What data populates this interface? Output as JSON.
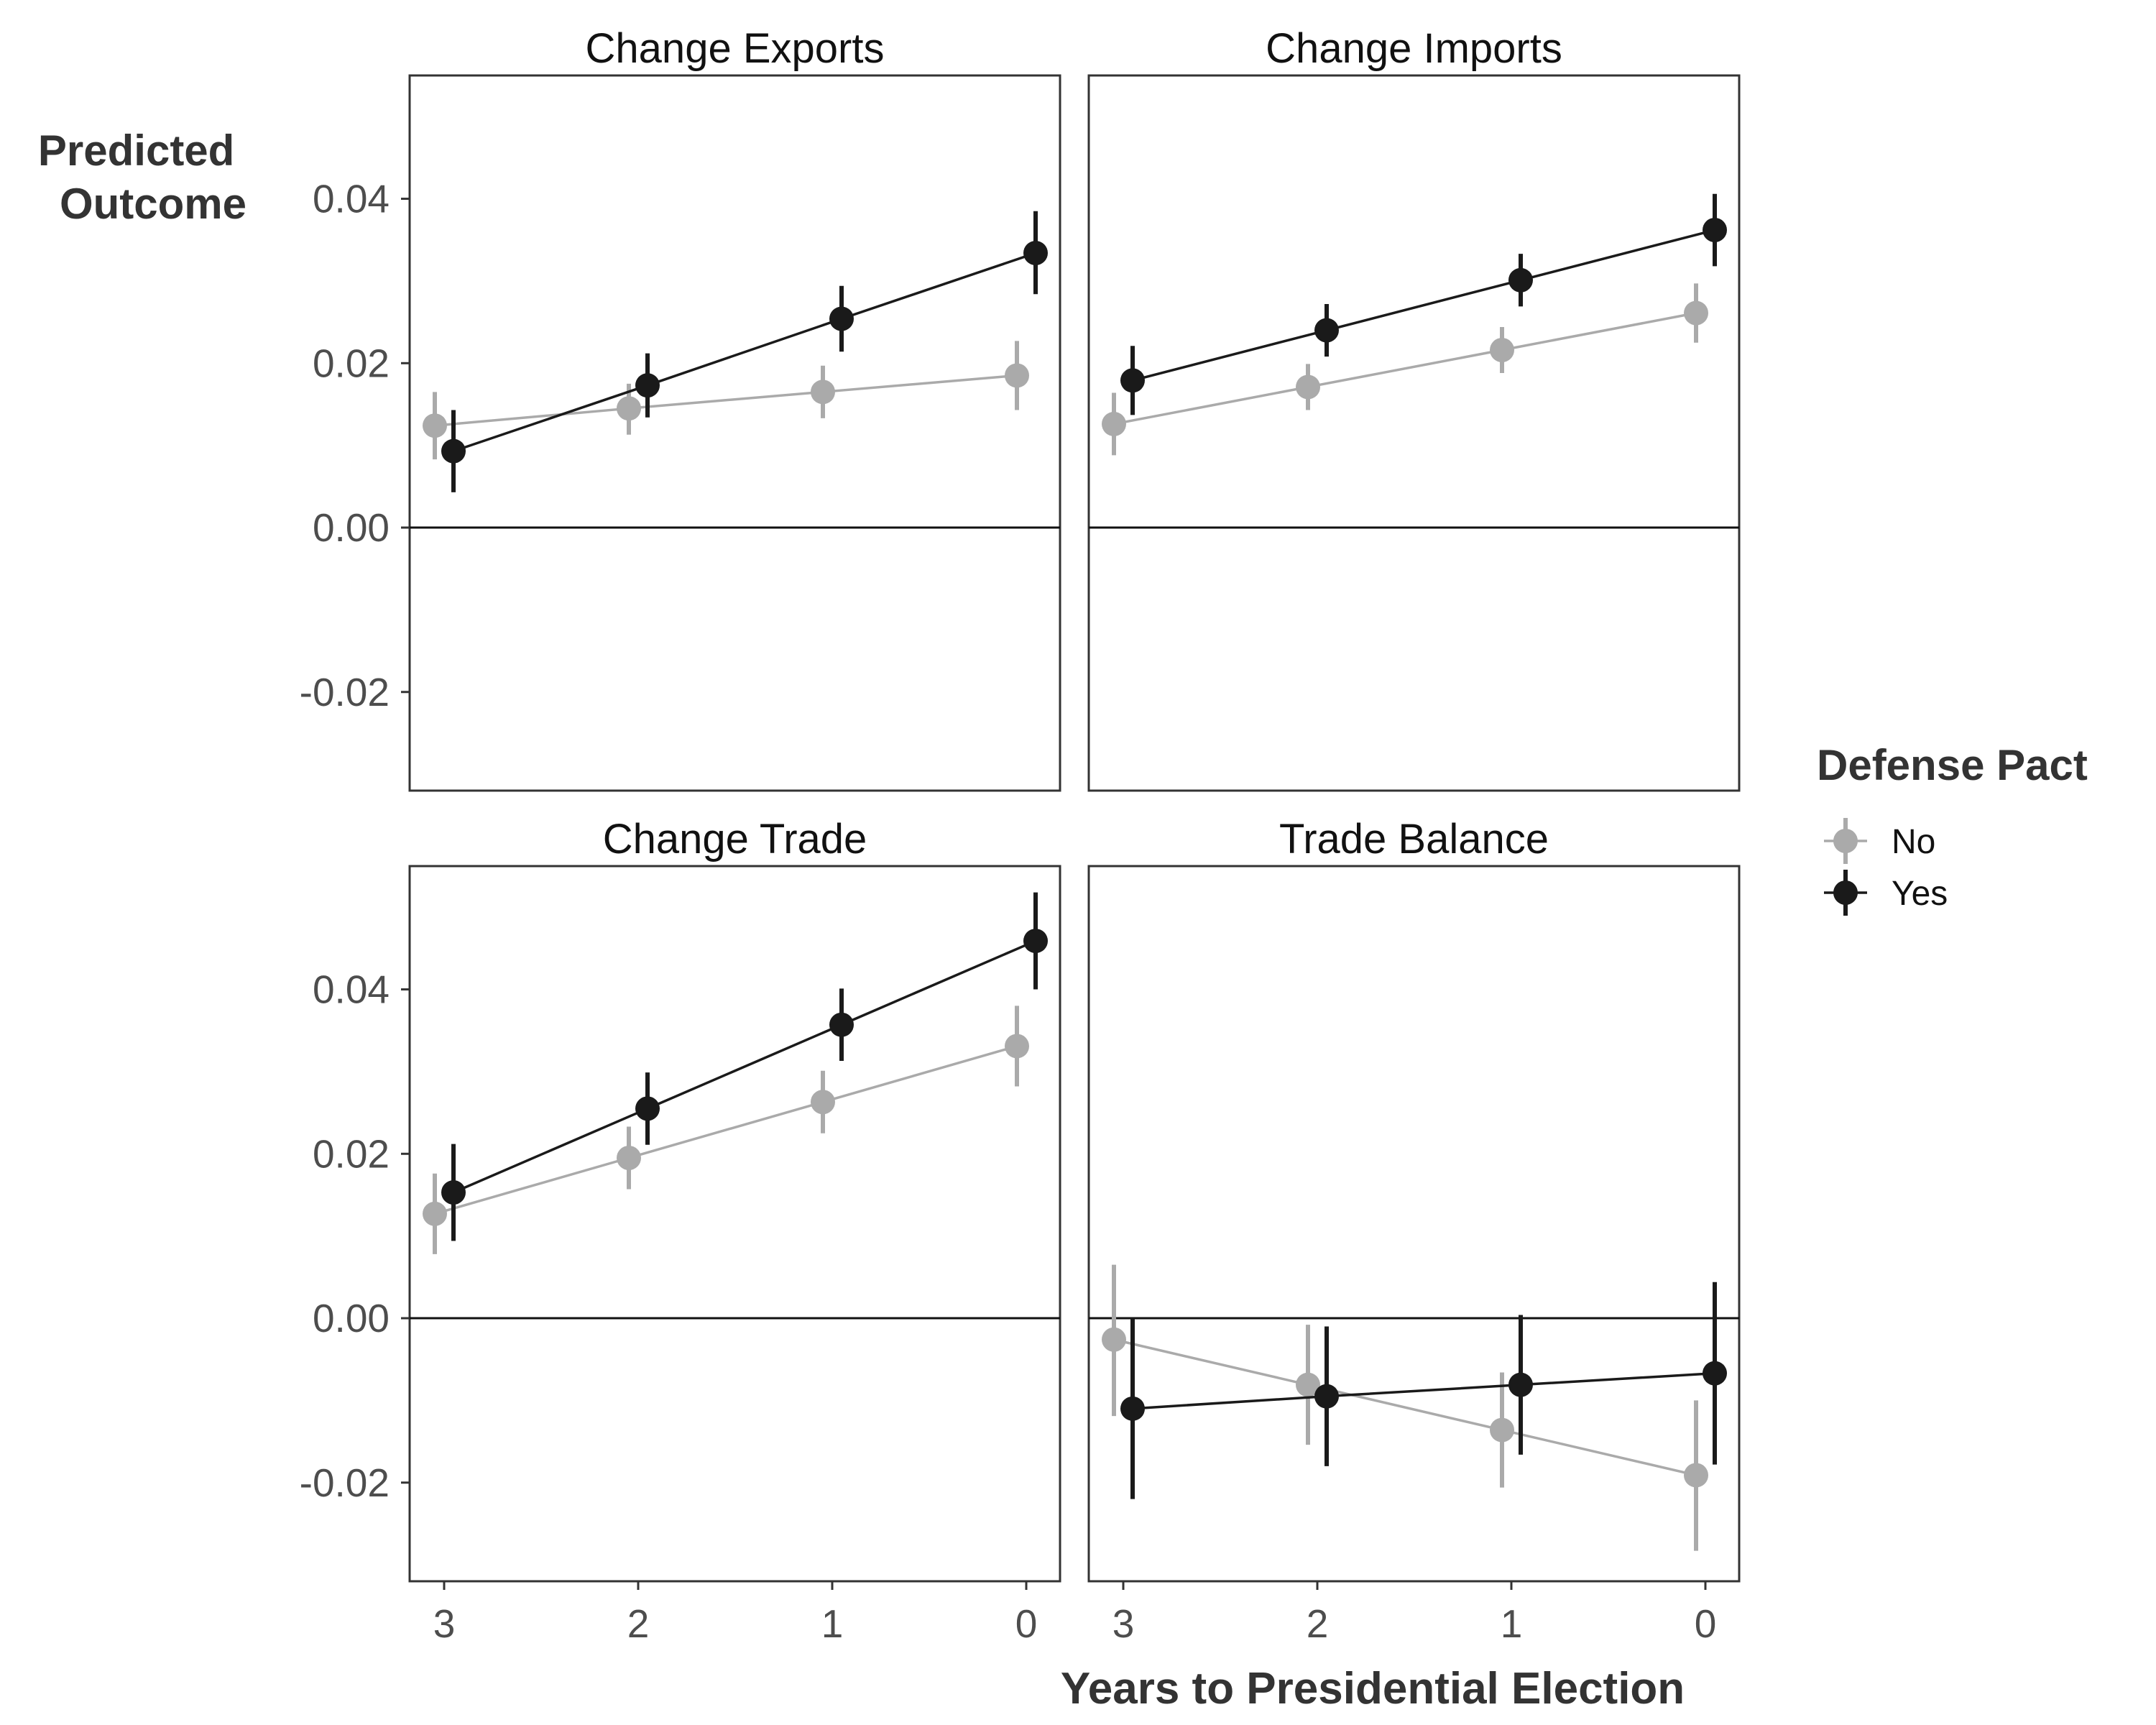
{
  "chart_data": {
    "type": "scatter",
    "facet_layout": "2x2",
    "ylabel": "Predicted\nOutcome",
    "xlabel": "Years to Presidential Election",
    "x_ticks": [
      3,
      2,
      1,
      0
    ],
    "x_reversed": true,
    "ylim": [
      -0.032,
      0.055
    ],
    "y_ticks": [
      "0.04",
      "0.02",
      "0.00",
      "-0.02"
    ],
    "y_tick_values": [
      0.04,
      0.02,
      0.0,
      -0.02
    ],
    "reference_line_y": 0,
    "grid": false,
    "legend": {
      "title": "Defense Pact",
      "placement": "right",
      "entries": [
        {
          "name": "No",
          "color": "#aaaaaa"
        },
        {
          "name": "Yes",
          "color": "#1a1a1a"
        }
      ]
    },
    "panels": [
      {
        "title": "Change Exports",
        "series": [
          {
            "name": "No",
            "color": "#aaaaaa",
            "x": [
              3,
              2,
              1,
              0
            ],
            "y": [
              0.0124,
              0.0145,
              0.0165,
              0.0185
            ],
            "lower": [
              0.0083,
              0.0113,
              0.0133,
              0.0143
            ],
            "upper": [
              0.0165,
              0.0175,
              0.0197,
              0.0227
            ]
          },
          {
            "name": "Yes",
            "color": "#1a1a1a",
            "x": [
              3,
              2,
              1,
              0
            ],
            "y": [
              0.0093,
              0.0173,
              0.0254,
              0.0334
            ],
            "lower": [
              0.0043,
              0.0134,
              0.0214,
              0.0284
            ],
            "upper": [
              0.0143,
              0.0212,
              0.0294,
              0.0385
            ]
          }
        ]
      },
      {
        "title": "Change Imports",
        "series": [
          {
            "name": "No",
            "color": "#aaaaaa",
            "x": [
              3,
              2,
              1,
              0
            ],
            "y": [
              0.0126,
              0.0171,
              0.0216,
              0.0261
            ],
            "lower": [
              0.0088,
              0.0143,
              0.0188,
              0.0225
            ],
            "upper": [
              0.0164,
              0.0199,
              0.0244,
              0.0297
            ]
          },
          {
            "name": "Yes",
            "color": "#1a1a1a",
            "x": [
              3,
              2,
              1,
              0
            ],
            "y": [
              0.0179,
              0.024,
              0.0301,
              0.0362
            ],
            "lower": [
              0.0137,
              0.0208,
              0.0269,
              0.0318
            ],
            "upper": [
              0.0221,
              0.0272,
              0.0333,
              0.0406
            ]
          }
        ]
      },
      {
        "title": "Change Trade",
        "series": [
          {
            "name": "No",
            "color": "#aaaaaa",
            "x": [
              3,
              2,
              1,
              0
            ],
            "y": [
              0.0127,
              0.0195,
              0.0263,
              0.0331
            ],
            "lower": [
              0.0078,
              0.0157,
              0.0225,
              0.0282
            ],
            "upper": [
              0.0176,
              0.0233,
              0.0301,
              0.038
            ]
          },
          {
            "name": "Yes",
            "color": "#1a1a1a",
            "x": [
              3,
              2,
              1,
              0
            ],
            "y": [
              0.0153,
              0.0255,
              0.0357,
              0.0459
            ],
            "lower": [
              0.0094,
              0.0211,
              0.0313,
              0.04
            ],
            "upper": [
              0.0212,
              0.0299,
              0.0401,
              0.0518
            ]
          }
        ]
      },
      {
        "title": "Trade Balance",
        "series": [
          {
            "name": "No",
            "color": "#aaaaaa",
            "x": [
              3,
              2,
              1,
              0
            ],
            "y": [
              -0.0026,
              -0.0081,
              -0.0136,
              -0.0191
            ],
            "lower": [
              -0.0119,
              -0.0154,
              -0.0206,
              -0.0283
            ],
            "upper": [
              0.0065,
              -0.0008,
              -0.0066,
              -0.01
            ]
          },
          {
            "name": "Yes",
            "color": "#1a1a1a",
            "x": [
              3,
              2,
              1,
              0
            ],
            "y": [
              -0.011,
              -0.0095,
              -0.0081,
              -0.0067
            ],
            "lower": [
              -0.022,
              -0.018,
              -0.0166,
              -0.0178
            ],
            "upper": [
              0.0,
              -0.001,
              0.0004,
              0.0044
            ]
          }
        ]
      }
    ]
  }
}
